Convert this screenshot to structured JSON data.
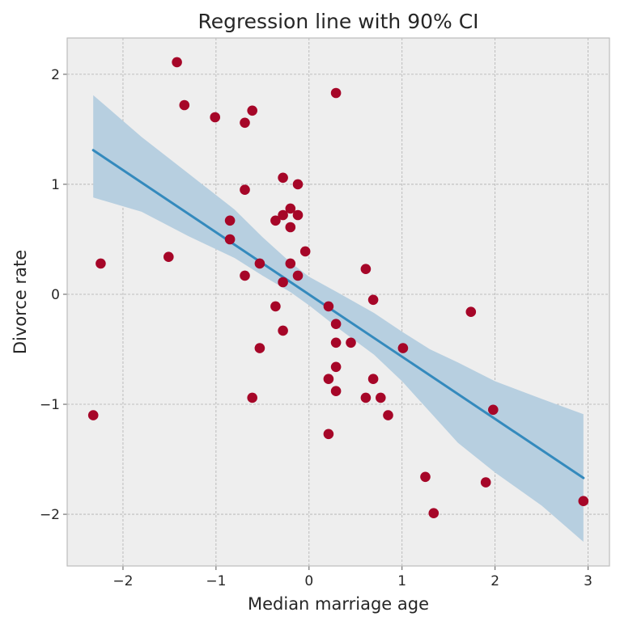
{
  "chart_data": {
    "type": "scatter",
    "title": "Regression line with 90% CI",
    "xlabel": "Median marriage age",
    "ylabel": "Divorce rate",
    "xlim": [
      -2.6,
      3.23
    ],
    "ylim": [
      -2.47,
      2.33
    ],
    "xticks": [
      -2,
      -1,
      0,
      1,
      2,
      3
    ],
    "yticks": [
      -2,
      -1,
      0,
      1,
      2
    ],
    "xtick_labels": [
      "−2",
      "−1",
      "0",
      "1",
      "2",
      "3"
    ],
    "ytick_labels": [
      "−2",
      "−1",
      "0",
      "1",
      "2"
    ],
    "grid": true,
    "colors": {
      "background": "#eeeeee",
      "points": "#a60628",
      "line": "#348abd",
      "band": "#b7cfe0",
      "grid": "#b0b0b0",
      "frame": "#bcbcbc"
    },
    "points": [
      {
        "x": -2.32,
        "y": -1.1
      },
      {
        "x": -2.24,
        "y": 0.28
      },
      {
        "x": -1.51,
        "y": 0.34
      },
      {
        "x": -1.42,
        "y": 2.11
      },
      {
        "x": -1.34,
        "y": 1.72
      },
      {
        "x": -1.01,
        "y": 1.61
      },
      {
        "x": -0.85,
        "y": 0.67
      },
      {
        "x": -0.85,
        "y": 0.5
      },
      {
        "x": -0.69,
        "y": 1.56
      },
      {
        "x": -0.69,
        "y": 0.95
      },
      {
        "x": -0.69,
        "y": 0.17
      },
      {
        "x": -0.61,
        "y": 1.67
      },
      {
        "x": -0.61,
        "y": -0.94
      },
      {
        "x": -0.53,
        "y": 0.28
      },
      {
        "x": -0.53,
        "y": -0.49
      },
      {
        "x": -0.36,
        "y": 0.67
      },
      {
        "x": -0.36,
        "y": -0.11
      },
      {
        "x": -0.28,
        "y": 1.06
      },
      {
        "x": -0.28,
        "y": 0.72
      },
      {
        "x": -0.28,
        "y": 0.11
      },
      {
        "x": -0.28,
        "y": -0.33
      },
      {
        "x": -0.2,
        "y": 0.78
      },
      {
        "x": -0.2,
        "y": 0.61
      },
      {
        "x": -0.2,
        "y": 0.28
      },
      {
        "x": -0.12,
        "y": 1.0
      },
      {
        "x": -0.12,
        "y": 0.72
      },
      {
        "x": -0.12,
        "y": 0.17
      },
      {
        "x": -0.04,
        "y": 0.39
      },
      {
        "x": 0.21,
        "y": -0.11
      },
      {
        "x": 0.21,
        "y": -0.77
      },
      {
        "x": 0.21,
        "y": -1.27
      },
      {
        "x": 0.29,
        "y": 1.83
      },
      {
        "x": 0.29,
        "y": -0.27
      },
      {
        "x": 0.29,
        "y": -0.44
      },
      {
        "x": 0.29,
        "y": -0.66
      },
      {
        "x": 0.29,
        "y": -0.88
      },
      {
        "x": 0.45,
        "y": -0.44
      },
      {
        "x": 0.61,
        "y": 0.23
      },
      {
        "x": 0.61,
        "y": -0.94
      },
      {
        "x": 0.69,
        "y": -0.05
      },
      {
        "x": 0.69,
        "y": -0.77
      },
      {
        "x": 0.77,
        "y": -0.94
      },
      {
        "x": 0.85,
        "y": -1.1
      },
      {
        "x": 1.01,
        "y": -0.49
      },
      {
        "x": 1.25,
        "y": -1.66
      },
      {
        "x": 1.34,
        "y": -1.99
      },
      {
        "x": 1.74,
        "y": -0.16
      },
      {
        "x": 1.9,
        "y": -1.71
      },
      {
        "x": 1.98,
        "y": -1.05
      },
      {
        "x": 2.95,
        "y": -1.88
      }
    ],
    "regression_line": [
      {
        "x": -2.32,
        "y": 1.31
      },
      {
        "x": 2.95,
        "y": -1.67
      }
    ],
    "ci_upper": [
      {
        "x": -2.32,
        "y": 1.81
      },
      {
        "x": -1.8,
        "y": 1.43
      },
      {
        "x": -1.3,
        "y": 1.1
      },
      {
        "x": -0.8,
        "y": 0.77
      },
      {
        "x": -0.5,
        "y": 0.52
      },
      {
        "x": -0.2,
        "y": 0.29
      },
      {
        "x": 0.0,
        "y": 0.16
      },
      {
        "x": 0.3,
        "y": 0.02
      },
      {
        "x": 0.7,
        "y": -0.17
      },
      {
        "x": 1.0,
        "y": -0.34
      },
      {
        "x": 1.3,
        "y": -0.5
      },
      {
        "x": 1.6,
        "y": -0.62
      },
      {
        "x": 2.0,
        "y": -0.79
      },
      {
        "x": 2.5,
        "y": -0.95
      },
      {
        "x": 2.95,
        "y": -1.09
      }
    ],
    "ci_lower": [
      {
        "x": -2.32,
        "y": 0.88
      },
      {
        "x": -1.8,
        "y": 0.75
      },
      {
        "x": -1.3,
        "y": 0.53
      },
      {
        "x": -0.8,
        "y": 0.33
      },
      {
        "x": -0.5,
        "y": 0.17
      },
      {
        "x": -0.2,
        "y": 0.02
      },
      {
        "x": 0.0,
        "y": -0.1
      },
      {
        "x": 0.3,
        "y": -0.3
      },
      {
        "x": 0.7,
        "y": -0.55
      },
      {
        "x": 1.0,
        "y": -0.79
      },
      {
        "x": 1.3,
        "y": -1.07
      },
      {
        "x": 1.6,
        "y": -1.35
      },
      {
        "x": 2.0,
        "y": -1.62
      },
      {
        "x": 2.5,
        "y": -1.92
      },
      {
        "x": 2.95,
        "y": -2.25
      }
    ]
  }
}
